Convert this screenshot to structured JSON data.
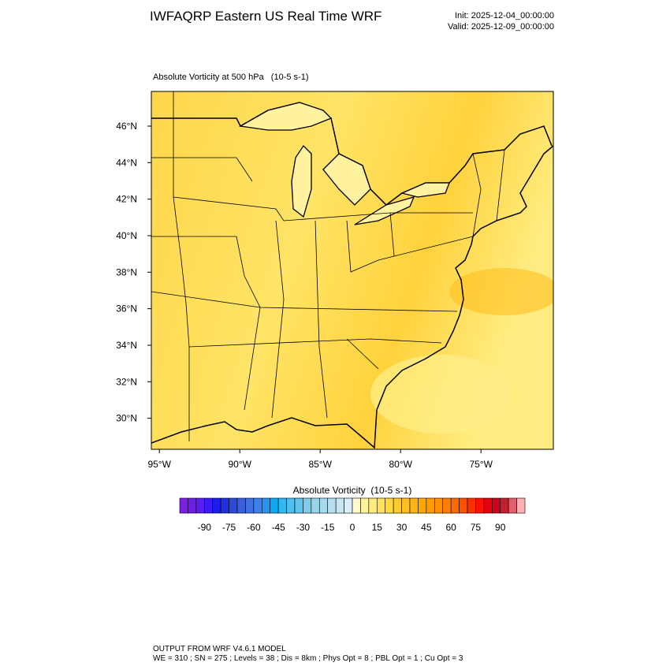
{
  "header": {
    "title": "IWFAQRP Eastern US Real Time WRF",
    "init": "Init: 2025-12-04_00:00:00",
    "valid": "Valid: 2025-12-09_00:00:00"
  },
  "map": {
    "title": "Absolute Vorticity at 500 hPa   (10-5 s-1)",
    "xlim": [
      -95.5,
      -70.5
    ],
    "ylim": [
      28.3,
      47.9
    ],
    "xticks": [
      {
        "value": -95,
        "label": "95°W"
      },
      {
        "value": -90,
        "label": "90°W"
      },
      {
        "value": -85,
        "label": "85°W"
      },
      {
        "value": -80,
        "label": "80°W"
      },
      {
        "value": -75,
        "label": "75°W"
      }
    ],
    "yticks": [
      {
        "value": 30,
        "label": "30°N"
      },
      {
        "value": 32,
        "label": "32°N"
      },
      {
        "value": 34,
        "label": "34°N"
      },
      {
        "value": 36,
        "label": "36°N"
      },
      {
        "value": 38,
        "label": "38°N"
      },
      {
        "value": 40,
        "label": "40°N"
      },
      {
        "value": 42,
        "label": "42°N"
      },
      {
        "value": 44,
        "label": "44°N"
      },
      {
        "value": 46,
        "label": "46°N"
      }
    ]
  },
  "colorbar": {
    "title": "Absolute Vorticity  (10-5 s-1)",
    "lim": [
      -105,
      105
    ],
    "ticks": [
      -90,
      -75,
      -60,
      -45,
      -30,
      -15,
      0,
      15,
      30,
      45,
      60,
      75,
      90
    ],
    "colors": [
      "#7b1fe0",
      "#6a1ee6",
      "#5a1df0",
      "#3a1cf5",
      "#1c1cf0",
      "#2030e0",
      "#2e4ad8",
      "#3a5fd8",
      "#3f70e0",
      "#4080e8",
      "#2894f0",
      "#10a8f0",
      "#30b8f0",
      "#4cc0ee",
      "#60c4ee",
      "#80cce8",
      "#98d4ea",
      "#a8daee",
      "#b8e0f0",
      "#c8e6f4",
      "#d8eef8",
      "#fffacd",
      "#fff3a0",
      "#ffec80",
      "#ffe060",
      "#ffd840",
      "#ffcc30",
      "#ffc020",
      "#ffb410",
      "#ffa800",
      "#ff9c00",
      "#ff9000",
      "#ff8000",
      "#ff6a00",
      "#ff5000",
      "#ff3000",
      "#ff1000",
      "#e80010",
      "#cc0020",
      "#c02030",
      "#e06070",
      "#ffb0b0"
    ]
  },
  "footer": [
    "OUTPUT FROM WRF V4.6.1 MODEL",
    "WE = 310 ; SN = 275 ; Levels = 38 ; Dis = 8km ; Phys Opt = 8 ; PBL Opt = 1 ; Cu Opt = 3"
  ]
}
